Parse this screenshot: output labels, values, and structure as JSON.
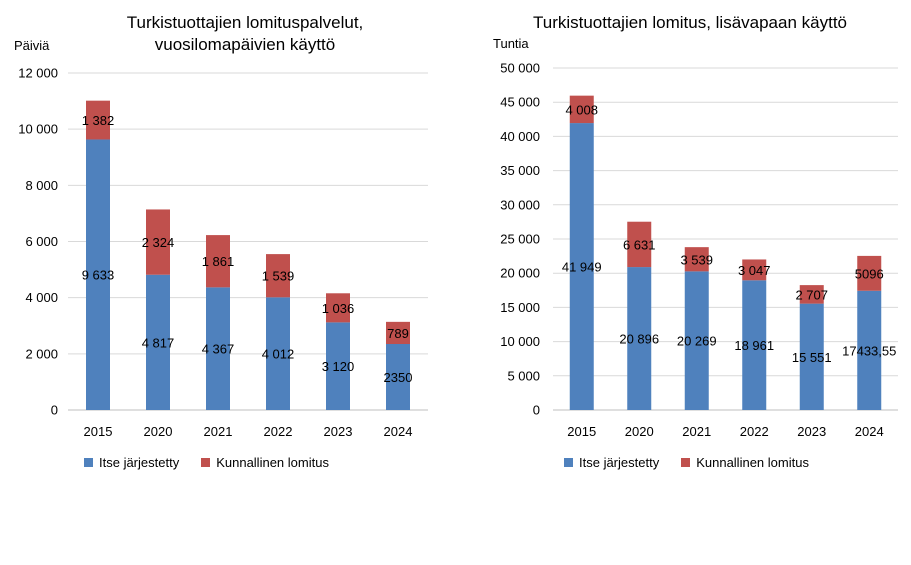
{
  "colors": {
    "itse": "#4f81bd",
    "kunnallinen": "#c0504d",
    "grid": "#d9d9d9"
  },
  "chart_data": [
    {
      "type": "bar",
      "stacked": true,
      "title_line1": "Turkistuottajien lomituspalvelut,",
      "title_line2": "vuosilomapäivien käyttö",
      "unit": "Päiviä",
      "categories": [
        "2015",
        "2020",
        "2021",
        "2022",
        "2023",
        "2024"
      ],
      "ylim": [
        0,
        12000
      ],
      "yticks": [
        0,
        2000,
        4000,
        6000,
        8000,
        10000,
        12000
      ],
      "ytick_labels": [
        "0",
        "2 000",
        "4 000",
        "6 000",
        "8 000",
        "10 000",
        "12 000"
      ],
      "grid": true,
      "legend_position": "bottom",
      "series": [
        {
          "name": "Itse järjestetty",
          "color": "#4f81bd",
          "values": [
            9633,
            4817,
            4367,
            4012,
            3120,
            2350
          ],
          "labels": [
            "9 633",
            "4 817",
            "4 367",
            "4 012",
            "3 120",
            "2350"
          ]
        },
        {
          "name": "Kunnallinen lomitus",
          "color": "#c0504d",
          "values": [
            1382,
            2324,
            1861,
            1539,
            1036,
            789
          ],
          "labels": [
            "1 382",
            "2 324",
            "1 861",
            "1 539",
            "1 036",
            "789"
          ]
        }
      ]
    },
    {
      "type": "bar",
      "stacked": true,
      "title_line1": "Turkistuottajien lomitus, lisävapaan käyttö",
      "title_line2": "",
      "unit": "Tuntia",
      "categories": [
        "2015",
        "2020",
        "2021",
        "2022",
        "2023",
        "2024"
      ],
      "ylim": [
        0,
        50000
      ],
      "yticks": [
        0,
        5000,
        10000,
        15000,
        20000,
        25000,
        30000,
        35000,
        40000,
        45000,
        50000
      ],
      "ytick_labels": [
        "0",
        "5 000",
        "10 000",
        "15 000",
        "20 000",
        "25 000",
        "30 000",
        "35 000",
        "40 000",
        "45 000",
        "50 000"
      ],
      "grid": true,
      "legend_position": "bottom",
      "series": [
        {
          "name": "Itse järjestetty",
          "color": "#4f81bd",
          "values": [
            41949,
            20896,
            20269,
            18961,
            15551,
            17433.55
          ],
          "labels": [
            "41 949",
            "20 896",
            "20 269",
            "18 961",
            "15 551",
            "17433,55"
          ]
        },
        {
          "name": "Kunnallinen lomitus",
          "color": "#c0504d",
          "values": [
            4008,
            6631,
            3539,
            3047,
            2707,
            5096
          ],
          "labels": [
            "4 008",
            "6 631",
            "3 539",
            "3 047",
            "2 707",
            "5096"
          ]
        }
      ]
    }
  ]
}
